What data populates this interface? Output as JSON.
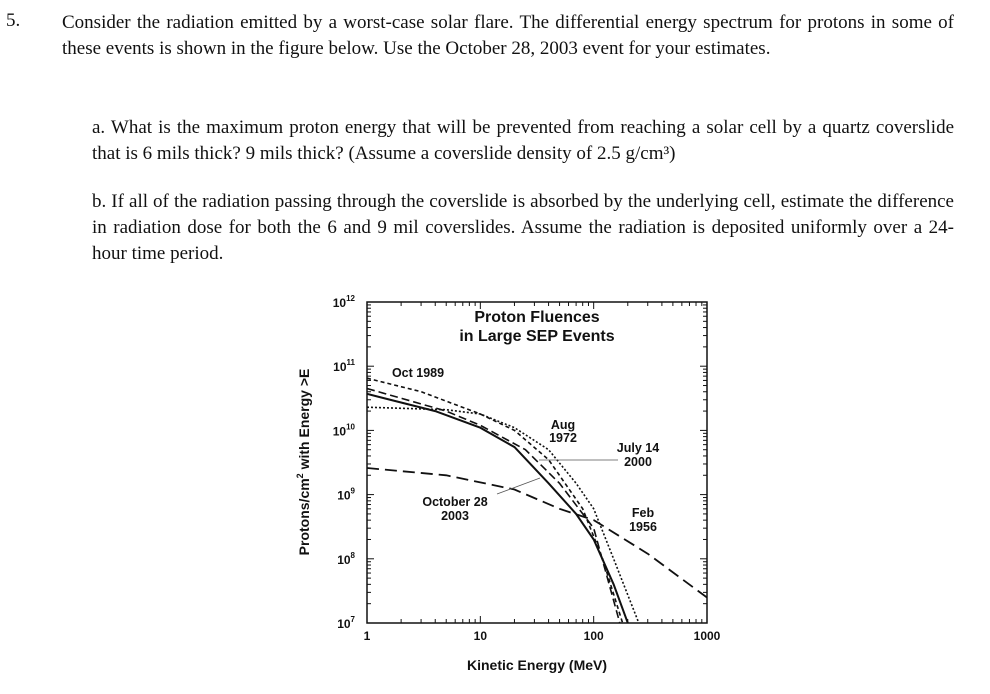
{
  "problem": {
    "number": "5.",
    "text": "Consider the radiation emitted by a worst-case solar flare. The differential energy spectrum for protons in some of these events is shown in the figure below. Use the October 28, 2003 event for your estimates.",
    "part_a": "a. What is the maximum proton energy that will be prevented from reaching a solar cell by a quartz coverslide that is 6 mils thick? 9 mils thick? (Assume a coverslide density of 2.5 g/cm³)",
    "part_b": "b. If all of the radiation passing through the coverslide is absorbed by the underlying cell, estimate the difference in radiation dose for both the 6 and 9 mil coverslides. Assume the radiation is deposited uniformly over a 24-hour time period."
  },
  "chart_data": {
    "type": "line",
    "title_line1": "Proton Fluences",
    "title_line2": "in Large SEP Events",
    "xlabel": "Kinetic Energy (MeV)",
    "ylabel_main": "Protons/cm",
    "ylabel_sup": "2",
    "ylabel_tail": " with Energy >E",
    "x_scale": "log",
    "y_scale": "log",
    "xlim": [
      1,
      1000
    ],
    "ylim": [
      10000000.0,
      1000000000000.0
    ],
    "x_ticks": [
      {
        "value": 1,
        "label": "1"
      },
      {
        "value": 10,
        "label": "10"
      },
      {
        "value": 100,
        "label": "100"
      },
      {
        "value": 1000,
        "label": "1000"
      }
    ],
    "y_ticks": [
      {
        "value": 10000000.0,
        "exp": "7"
      },
      {
        "value": 100000000.0,
        "exp": "8"
      },
      {
        "value": 1000000000.0,
        "exp": "9"
      },
      {
        "value": 10000000000.0,
        "exp": "10"
      },
      {
        "value": 100000000000.0,
        "exp": "11"
      },
      {
        "value": 1000000000000.0,
        "exp": "12"
      }
    ],
    "y_tick_base": "10",
    "grid": false,
    "series": [
      {
        "name": "Oct 1989",
        "style": "short-dash",
        "label_lines": [
          "Oct 1989"
        ],
        "x": [
          1,
          3,
          10,
          20,
          40,
          80,
          120,
          180
        ],
        "y": [
          65000000000.0,
          40000000000.0,
          18000000000.0,
          10000000000.0,
          3500000000.0,
          600000000.0,
          100000000.0,
          10000000.0
        ]
      },
      {
        "name": "Aug 1972",
        "style": "dotted",
        "label_lines": [
          "Aug",
          "1972"
        ],
        "x": [
          1,
          5,
          10,
          20,
          40,
          70,
          100,
          150,
          250
        ],
        "y": [
          23000000000.0,
          21000000000.0,
          18000000000.0,
          11000000000.0,
          5000000000.0,
          1500000000.0,
          600000000.0,
          100000000.0,
          10000000.0
        ]
      },
      {
        "name": "July 14 2000",
        "style": "dash",
        "label_lines": [
          "July 14",
          "2000"
        ],
        "x": [
          1,
          5,
          10,
          25,
          50,
          100,
          170
        ],
        "y": [
          45000000000.0,
          20000000000.0,
          12000000000.0,
          5000000000.0,
          1500000000.0,
          300000000.0,
          10000000.0
        ]
      },
      {
        "name": "October 28 2003",
        "style": "solid",
        "label_lines": [
          "October 28",
          "2003"
        ],
        "x": [
          1,
          4,
          10,
          20,
          40,
          70,
          100,
          150,
          200
        ],
        "y": [
          37000000000.0,
          20000000000.0,
          11000000000.0,
          5500000000.0,
          1500000000.0,
          500000000.0,
          200000000.0,
          40000000.0,
          10000000.0
        ]
      },
      {
        "name": "Feb 1956",
        "style": "long-dash",
        "label_lines": [
          "Feb",
          "1956"
        ],
        "x": [
          1,
          5,
          20,
          50,
          100,
          300,
          1000
        ],
        "y": [
          2600000000.0,
          2000000000.0,
          1200000000.0,
          600000000.0,
          400000000.0,
          120000000.0,
          25000000.0
        ]
      }
    ]
  }
}
